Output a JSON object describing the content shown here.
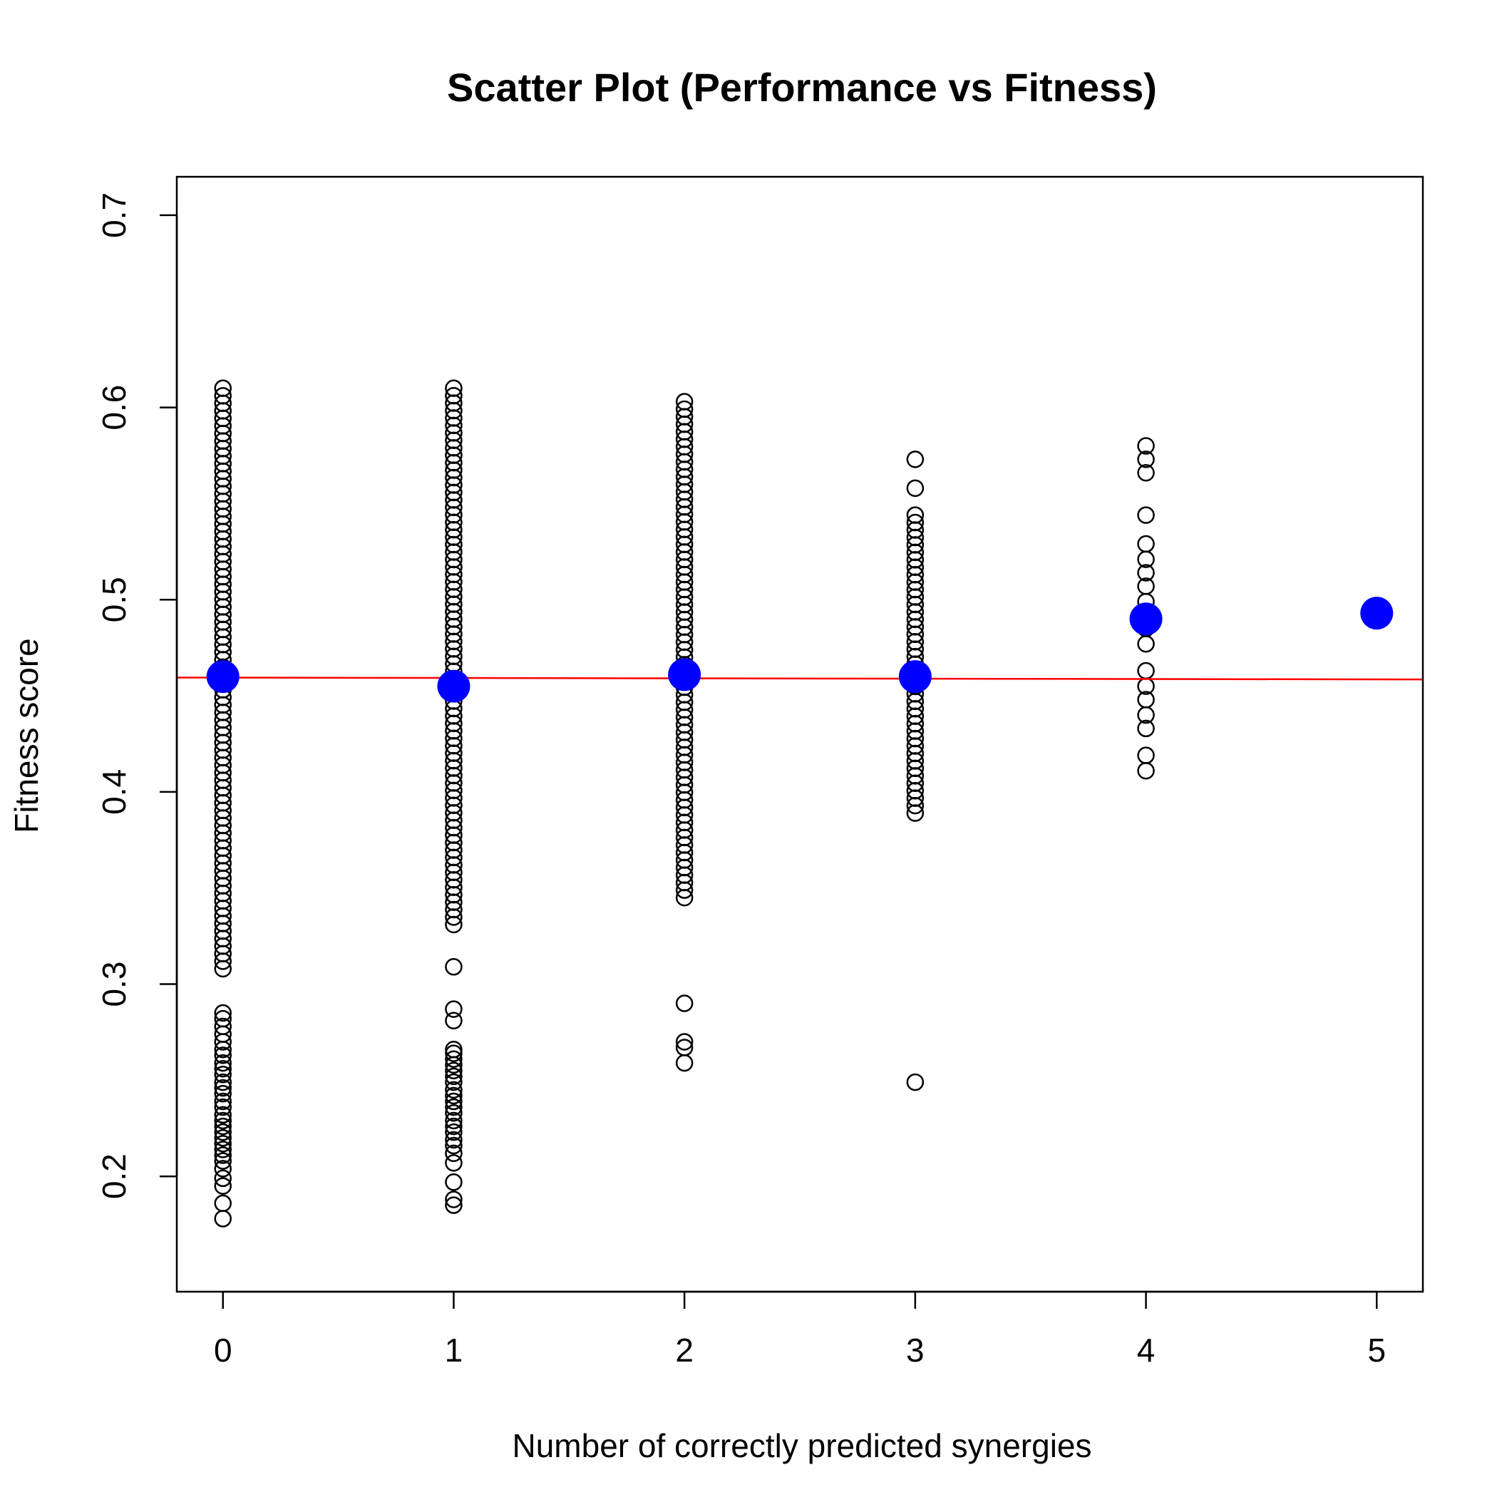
{
  "chart_data": {
    "type": "scatter",
    "title": "Scatter Plot (Performance vs Fitness)",
    "xlabel": "Number of correctly predicted synergies",
    "ylabel": "Fitness score",
    "xlim": [
      -0.2,
      5.2
    ],
    "ylim": [
      0.14,
      0.72
    ],
    "xticks": [
      "0",
      "1",
      "2",
      "3",
      "4",
      "5"
    ],
    "yticks": [
      "0.2",
      "0.3",
      "0.4",
      "0.5",
      "0.6",
      "0.7"
    ],
    "colors": {
      "points": "#000000",
      "means": "#0000ff",
      "trend": "#ff0000"
    },
    "trend_line": {
      "x": [
        -0.2,
        5.2
      ],
      "y": [
        0.4595,
        0.4585
      ]
    },
    "means": [
      {
        "x": 0,
        "y": 0.46
      },
      {
        "x": 1,
        "y": 0.455
      },
      {
        "x": 2,
        "y": 0.461
      },
      {
        "x": 3,
        "y": 0.46
      },
      {
        "x": 4,
        "y": 0.49
      },
      {
        "x": 5,
        "y": 0.493
      }
    ],
    "points": [
      {
        "x": 0,
        "ranges": [
          [
            0.308,
            0.61
          ]
        ],
        "values": [
          0.178,
          0.186,
          0.195,
          0.199,
          0.204,
          0.208,
          0.211,
          0.214,
          0.217,
          0.22,
          0.223,
          0.226,
          0.229,
          0.232,
          0.236,
          0.239,
          0.243,
          0.246,
          0.249,
          0.253,
          0.256,
          0.259,
          0.263,
          0.266,
          0.27,
          0.274,
          0.278,
          0.282,
          0.285
        ]
      },
      {
        "x": 1,
        "ranges": [
          [
            0.331,
            0.61
          ]
        ],
        "values": [
          0.185,
          0.188,
          0.197,
          0.207,
          0.212,
          0.216,
          0.219,
          0.223,
          0.226,
          0.229,
          0.233,
          0.236,
          0.239,
          0.242,
          0.245,
          0.249,
          0.252,
          0.255,
          0.258,
          0.261,
          0.264,
          0.266,
          0.281,
          0.287,
          0.309
        ]
      },
      {
        "x": 2,
        "ranges": [
          [
            0.345,
            0.603
          ]
        ],
        "values": [
          0.259,
          0.267,
          0.27,
          0.29
        ]
      },
      {
        "x": 3,
        "ranges": [
          [
            0.389,
            0.544
          ]
        ],
        "values": [
          0.249,
          0.558,
          0.573
        ]
      },
      {
        "x": 4,
        "ranges": [],
        "values": [
          0.411,
          0.419,
          0.433,
          0.44,
          0.448,
          0.455,
          0.463,
          0.477,
          0.485,
          0.492,
          0.499,
          0.507,
          0.514,
          0.521,
          0.529,
          0.544,
          0.566,
          0.573,
          0.58
        ]
      }
    ]
  }
}
